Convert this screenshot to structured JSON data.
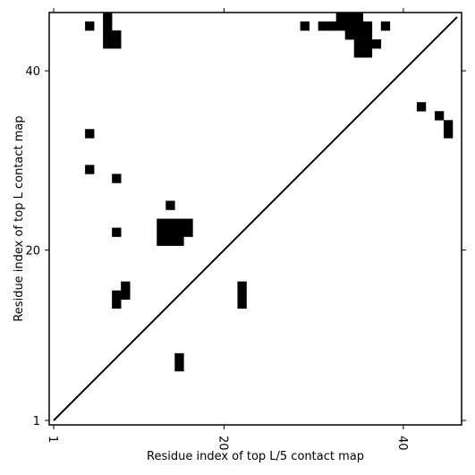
{
  "chart_data": {
    "type": "heatmap",
    "xlabel": "Residue index of top L/5 contact map",
    "ylabel": "Residue index of top L contact map",
    "xlim": [
      0.5,
      46.5
    ],
    "ylim": [
      0.5,
      46.5
    ],
    "x_ticks": [
      {
        "value": 1,
        "label": "1"
      },
      {
        "value": 20,
        "label": "20"
      },
      {
        "value": 40,
        "label": "40"
      }
    ],
    "y_ticks": [
      {
        "value": 1,
        "label": "1"
      },
      {
        "value": 20,
        "label": "20"
      },
      {
        "value": 40,
        "label": "40"
      }
    ],
    "diagonal": {
      "from": [
        1,
        1
      ],
      "to": [
        46,
        46
      ]
    },
    "cell_color": "#000000",
    "background_color": "#ffffff",
    "contacts": [
      [
        5,
        45
      ],
      [
        7,
        45
      ],
      [
        7,
        46
      ],
      [
        7,
        44
      ],
      [
        7,
        43
      ],
      [
        8,
        44
      ],
      [
        8,
        43
      ],
      [
        29,
        45
      ],
      [
        31,
        45
      ],
      [
        32,
        45
      ],
      [
        33,
        45
      ],
      [
        33,
        46
      ],
      [
        34,
        45
      ],
      [
        34,
        46
      ],
      [
        34,
        44
      ],
      [
        35,
        45
      ],
      [
        35,
        46
      ],
      [
        35,
        44
      ],
      [
        36,
        45
      ],
      [
        36,
        44
      ],
      [
        36,
        43
      ],
      [
        36,
        42
      ],
      [
        37,
        43
      ],
      [
        38,
        45
      ],
      [
        35,
        43
      ],
      [
        35,
        42
      ],
      [
        42,
        36
      ],
      [
        44,
        35
      ],
      [
        45,
        34
      ],
      [
        45,
        33
      ],
      [
        5,
        33
      ],
      [
        5,
        29
      ],
      [
        8,
        28
      ],
      [
        14,
        25
      ],
      [
        8,
        22
      ],
      [
        13,
        23
      ],
      [
        13,
        22
      ],
      [
        13,
        21
      ],
      [
        14,
        23
      ],
      [
        14,
        22
      ],
      [
        14,
        21
      ],
      [
        15,
        23
      ],
      [
        15,
        22
      ],
      [
        15,
        21
      ],
      [
        16,
        23
      ],
      [
        16,
        22
      ],
      [
        9,
        16
      ],
      [
        9,
        15
      ],
      [
        8,
        15
      ],
      [
        8,
        14
      ],
      [
        15,
        8
      ],
      [
        15,
        7
      ],
      [
        22,
        16
      ],
      [
        22,
        15
      ],
      [
        22,
        14
      ]
    ]
  }
}
